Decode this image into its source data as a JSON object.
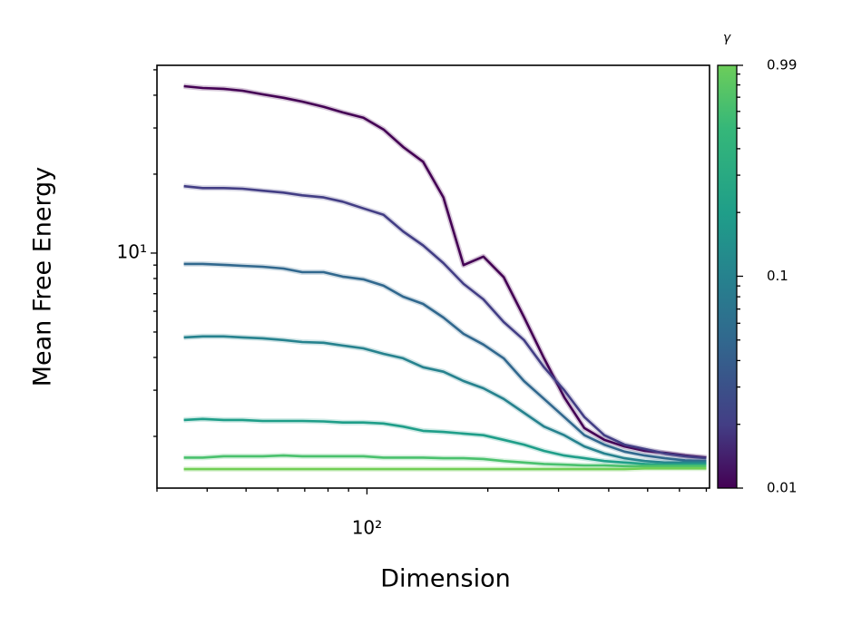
{
  "chart_data": {
    "type": "line",
    "xlabel": "Dimension",
    "ylabel": "Mean Free Energy",
    "xscale": "log",
    "yscale": "log",
    "xlim": [
      30,
      713
    ],
    "ylim": [
      1.27,
      52
    ],
    "xticks": [
      {
        "value": 100,
        "label": "10²"
      }
    ],
    "yticks": [
      {
        "value": 10,
        "label": "10¹"
      }
    ],
    "x": [
      35,
      39,
      44,
      49,
      55,
      62,
      69,
      78,
      87,
      98,
      110,
      123,
      138,
      155,
      174,
      195,
      219,
      246,
      276,
      310,
      348,
      390,
      438,
      492,
      552,
      620,
      700
    ],
    "series": [
      {
        "color": "#440154",
        "values": [
          43.3,
          42.6,
          42.3,
          41.6,
          40.3,
          39.1,
          37.8,
          36.1,
          34.4,
          32.8,
          29.6,
          25.4,
          22.3,
          16.3,
          9.0,
          9.7,
          8.1,
          5.7,
          3.97,
          2.82,
          2.15,
          1.94,
          1.83,
          1.76,
          1.73,
          1.69,
          1.66
        ]
      },
      {
        "color": "#433e85",
        "values": [
          18.0,
          17.7,
          17.7,
          17.6,
          17.3,
          17.0,
          16.6,
          16.3,
          15.7,
          14.8,
          14.0,
          12.1,
          10.7,
          9.16,
          7.63,
          6.66,
          5.46,
          4.66,
          3.67,
          3.0,
          2.37,
          2.02,
          1.86,
          1.79,
          1.72,
          1.68,
          1.65
        ]
      },
      {
        "color": "#31688e",
        "values": [
          9.09,
          9.09,
          9.02,
          8.94,
          8.87,
          8.73,
          8.46,
          8.46,
          8.13,
          7.94,
          7.51,
          6.82,
          6.4,
          5.68,
          4.92,
          4.48,
          3.97,
          3.25,
          2.78,
          2.37,
          2.02,
          1.86,
          1.75,
          1.69,
          1.65,
          1.62,
          1.61
        ]
      },
      {
        "color": "#26828e",
        "values": [
          4.77,
          4.81,
          4.81,
          4.77,
          4.73,
          4.66,
          4.58,
          4.55,
          4.44,
          4.33,
          4.13,
          3.97,
          3.67,
          3.53,
          3.25,
          3.05,
          2.78,
          2.46,
          2.18,
          2.02,
          1.83,
          1.72,
          1.65,
          1.61,
          1.59,
          1.59,
          1.59
        ]
      },
      {
        "color": "#1f9e89",
        "values": [
          2.31,
          2.33,
          2.31,
          2.31,
          2.29,
          2.29,
          2.29,
          2.28,
          2.26,
          2.26,
          2.24,
          2.18,
          2.1,
          2.08,
          2.05,
          2.02,
          1.94,
          1.86,
          1.76,
          1.69,
          1.65,
          1.61,
          1.59,
          1.57,
          1.56,
          1.56,
          1.56
        ]
      },
      {
        "color": "#4ac16d",
        "values": [
          1.66,
          1.66,
          1.68,
          1.68,
          1.68,
          1.69,
          1.68,
          1.68,
          1.68,
          1.68,
          1.66,
          1.66,
          1.66,
          1.65,
          1.65,
          1.64,
          1.61,
          1.59,
          1.57,
          1.56,
          1.55,
          1.55,
          1.54,
          1.54,
          1.54,
          1.54,
          1.54
        ]
      },
      {
        "color": "#72cf55",
        "values": [
          1.5,
          1.5,
          1.5,
          1.5,
          1.5,
          1.5,
          1.5,
          1.5,
          1.5,
          1.5,
          1.5,
          1.5,
          1.5,
          1.5,
          1.5,
          1.5,
          1.5,
          1.5,
          1.5,
          1.5,
          1.5,
          1.5,
          1.5,
          1.51,
          1.51,
          1.51,
          1.51
        ]
      }
    ],
    "colorbar": {
      "label": "γ",
      "scale": "log",
      "lim": [
        0.01,
        0.99
      ],
      "ticks": [
        0.01,
        0.1,
        0.99
      ]
    }
  }
}
